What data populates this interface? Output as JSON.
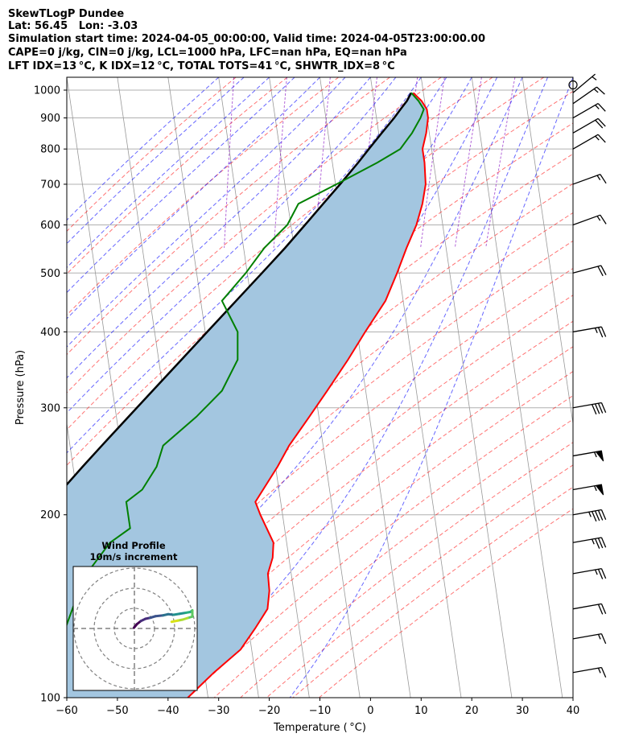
{
  "header": {
    "line1": "SkewTLogP Dundee",
    "line2": "Lat: 56.45   Lon: -3.03",
    "line3": "Simulation start time: 2024-04-05_00:00:00, Valid time: 2024-04-05T23:00:00.00",
    "line4": "CAPE=0 j/kg, CIN=0 j/kg, LCL=1000 hPa, LFC=nan hPa, EQ=nan hPa",
    "line5": "LFT IDX=13 °C, K IDX=12 °C, TOTAL TOTS=41 °C, SHWTR_IDX=8 °C"
  },
  "colors": {
    "temperature": "#ff0000",
    "dewpoint": "#008000",
    "parcel": "#000000",
    "cape_fill": "#a3c6e0",
    "dry_adiabat": "#ff0000",
    "moist_adiabat": "#0000ff",
    "mixing_ratio": "#8000c0",
    "isotherm": "#999999"
  },
  "chart_data": [
    {
      "type": "line",
      "kind": "skew-T log-P",
      "xlabel": "Temperature ( °C)",
      "ylabel": "Pressure (hPa)",
      "xlim": [
        -60,
        40
      ],
      "ylim": [
        1050,
        100
      ],
      "y_scale": "log",
      "x_ticks": [
        "−60",
        "−50",
        "−40",
        "−30",
        "−20",
        "−10",
        "0",
        "10",
        "20",
        "30",
        "40"
      ],
      "y_ticks": [
        "100",
        "200",
        "300",
        "400",
        "500",
        "600",
        "700",
        "800",
        "900",
        "1000"
      ],
      "grid": true,
      "series": [
        {
          "role": "temperature",
          "p": [
            990,
            960,
            930,
            900,
            850,
            800,
            760,
            700,
            650,
            600,
            550,
            500,
            450,
            400,
            360,
            320,
            290,
            260,
            240,
            210,
            200,
            180,
            170,
            160,
            150,
            140,
            130,
            120,
            110,
            100
          ],
          "t": [
            8.0,
            9.4,
            10.2,
            10.2,
            9.4,
            8.2,
            8.2,
            7.8,
            6.6,
            4.8,
            2.2,
            -0.4,
            -3.5,
            -8.4,
            -12.6,
            -17.6,
            -21.9,
            -26.7,
            -29.6,
            -35.0,
            -34.4,
            -32.6,
            -33.2,
            -34.6,
            -34.8,
            -35.7,
            -38.7,
            -42.2,
            -48.1,
            -54.0
          ]
        },
        {
          "role": "dewpoint",
          "p": [
            990,
            960,
            930,
            900,
            850,
            800,
            760,
            700,
            650,
            600,
            550,
            500,
            450,
            400,
            360,
            320,
            290,
            260,
            240,
            220,
            210,
            190,
            180,
            160,
            150,
            130,
            100
          ],
          "t": [
            7.6,
            8.8,
            9.6,
            8.7,
            6.6,
            3.8,
            -1.1,
            -9.8,
            -17.9,
            -20.7,
            -25.9,
            -30.3,
            -35.8,
            -33.6,
            -34.4,
            -38.4,
            -44.2,
            -51.6,
            -53.5,
            -57.0,
            -60.5,
            -60.5,
            -64.9,
            -70.4,
            -72.4,
            -76.2,
            -87.0
          ]
        },
        {
          "role": "parcel",
          "p": [
            990,
            960,
            930,
            900,
            850,
            800,
            760,
            700,
            650,
            600,
            550,
            500,
            450,
            400,
            360,
            320,
            290,
            260,
            240,
            220,
            200,
            180,
            160,
            140,
            120,
            100
          ],
          "t": [
            7.6,
            6.5,
            5.0,
            3.5,
            0.6,
            -2.4,
            -4.9,
            -9.1,
            -13.0,
            -17.2,
            -21.8,
            -27.1,
            -33.0,
            -39.6,
            -45.5,
            -52.1,
            -57.6,
            -63.7,
            -68.1,
            -72.8,
            -77.9,
            -83.2,
            -88.9,
            -95.0,
            -101.8,
            -109.2
          ]
        }
      ],
      "wind_barbs": [
        {
          "p": 1020,
          "speed_kt": 0,
          "calm": true
        },
        {
          "p": 990,
          "speed_kt": 5,
          "dir_deg": 230
        },
        {
          "p": 950,
          "speed_kt": 15,
          "dir_deg": 235
        },
        {
          "p": 900,
          "speed_kt": 15,
          "dir_deg": 240
        },
        {
          "p": 850,
          "speed_kt": 20,
          "dir_deg": 240
        },
        {
          "p": 800,
          "speed_kt": 15,
          "dir_deg": 240
        },
        {
          "p": 700,
          "speed_kt": 15,
          "dir_deg": 250
        },
        {
          "p": 600,
          "speed_kt": 15,
          "dir_deg": 250
        },
        {
          "p": 500,
          "speed_kt": 20,
          "dir_deg": 255
        },
        {
          "p": 400,
          "speed_kt": 25,
          "dir_deg": 260
        },
        {
          "p": 300,
          "speed_kt": 40,
          "dir_deg": 260
        },
        {
          "p": 250,
          "speed_kt": 55,
          "dir_deg": 260
        },
        {
          "p": 220,
          "speed_kt": 55,
          "dir_deg": 260
        },
        {
          "p": 200,
          "speed_kt": 45,
          "dir_deg": 260
        },
        {
          "p": 180,
          "speed_kt": 35,
          "dir_deg": 260
        },
        {
          "p": 160,
          "speed_kt": 25,
          "dir_deg": 260
        },
        {
          "p": 140,
          "speed_kt": 20,
          "dir_deg": 260
        },
        {
          "p": 125,
          "speed_kt": 15,
          "dir_deg": 260
        },
        {
          "p": 110,
          "speed_kt": 15,
          "dir_deg": 260
        }
      ]
    },
    {
      "type": "line",
      "kind": "hodograph",
      "title": "Wind Profile",
      "subtitle": "10m/s increment",
      "ring_step_ms": 10,
      "u": [
        -0.2,
        1.2,
        3.2,
        5.5,
        7.8,
        10.5,
        14.2,
        16.8,
        19.5,
        22.5,
        25.5,
        27.8,
        28.8,
        28.8,
        26.5,
        24.0,
        21.5,
        18.5
      ],
      "v": [
        0.4,
        2.1,
        3.7,
        4.8,
        5.3,
        6.1,
        6.5,
        7.1,
        6.8,
        7.3,
        7.8,
        8.2,
        9.0,
        5.9,
        5.2,
        4.4,
        3.9,
        3.3
      ]
    }
  ]
}
